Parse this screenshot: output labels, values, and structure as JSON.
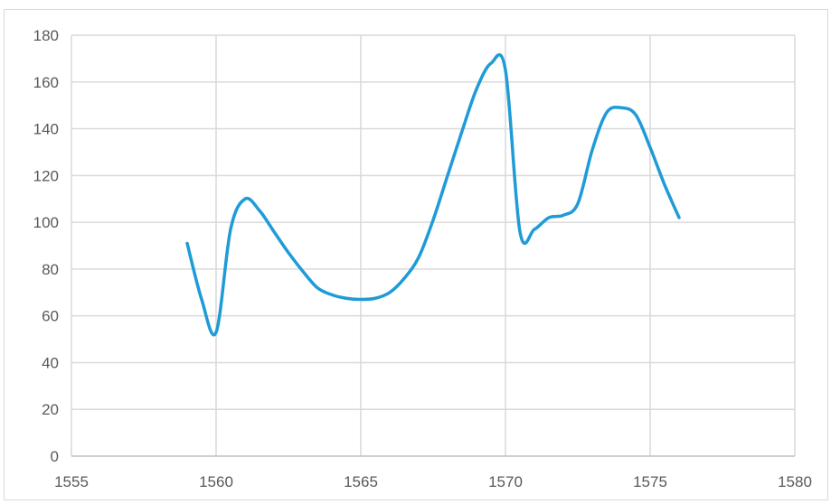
{
  "chart_data": {
    "type": "line",
    "title": "",
    "xlabel": "",
    "ylabel": "",
    "xlim": [
      1555,
      1580
    ],
    "ylim": [
      0,
      180
    ],
    "x_ticks": [
      1555,
      1560,
      1565,
      1570,
      1575,
      1580
    ],
    "y_ticks": [
      0,
      20,
      40,
      60,
      80,
      100,
      120,
      140,
      160,
      180
    ],
    "x_tick_labels": [
      "1555",
      "1560",
      "1565",
      "1570",
      "1575",
      "1580"
    ],
    "y_tick_labels": [
      "0",
      "20",
      "40",
      "60",
      "80",
      "100",
      "120",
      "140",
      "160",
      "180"
    ],
    "grid": true,
    "legend": "none",
    "smooth": true,
    "series": [
      {
        "color": "#1f9bd7",
        "x": [
          1559,
          1559.5,
          1560,
          1560.5,
          1561,
          1561.5,
          1562,
          1562.5,
          1563,
          1563.5,
          1564,
          1564.5,
          1565,
          1565.5,
          1566,
          1566.5,
          1567,
          1567.5,
          1568,
          1568.5,
          1569,
          1569.5,
          1570,
          1570.5,
          1571,
          1571.5,
          1572,
          1572.5,
          1573,
          1573.5,
          1574,
          1574.5,
          1575,
          1575.5,
          1576
        ],
        "y": [
          91,
          67,
          53,
          97,
          110,
          105,
          96,
          87,
          79,
          72,
          69,
          67.5,
          67,
          67.5,
          70,
          76,
          85,
          101,
          120,
          139,
          157,
          168,
          165,
          96,
          97,
          102,
          103,
          108,
          131,
          147,
          149,
          146,
          132,
          116,
          102
        ]
      }
    ]
  }
}
